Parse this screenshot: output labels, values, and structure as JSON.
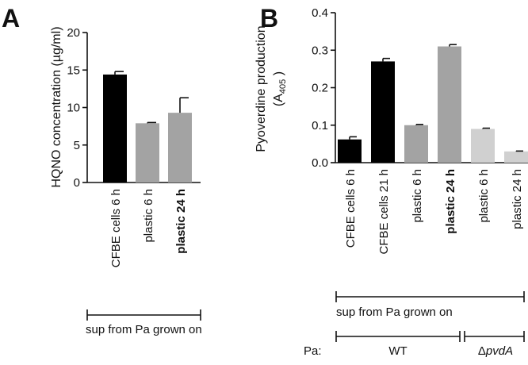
{
  "figure": {
    "panel_a_letter": "A",
    "panel_b_letter": "B"
  },
  "chart_data": [
    {
      "type": "bar",
      "panel": "A",
      "ylabel": "HQNO concentration (µg/ml)",
      "xlabel": "",
      "ylim": [
        0,
        20
      ],
      "yticks": [
        0,
        5,
        10,
        15,
        20
      ],
      "categories": [
        "CFBE cells 6 h",
        "plastic 6 h",
        "plastic 24 h"
      ],
      "bold_categories": [
        "plastic 24 h"
      ],
      "values": [
        14.4,
        7.9,
        9.3
      ],
      "errors": [
        0.4,
        0.1,
        2.0
      ],
      "colors": [
        "#000000",
        "#a3a3a3",
        "#a3a3a3"
      ],
      "bracket_label": "sup from Pa grown on",
      "grid": false,
      "legend": "none"
    },
    {
      "type": "bar",
      "panel": "B",
      "ylabel_line1": "Pyoverdine production",
      "ylabel_line2_prefix": "(A",
      "ylabel_line2_sub": "405",
      "ylabel_line2_suffix": " )",
      "xlabel": "",
      "ylim": [
        0,
        0.4
      ],
      "yticks": [
        "0.0",
        "0.1",
        "0.2",
        "0.3",
        "0.4"
      ],
      "categories": [
        "CFBE cells 6 h",
        "CFBE cells 21 h",
        "plastic 6 h",
        "plastic 24 h",
        "plastic 6 h",
        "plastic 24 h"
      ],
      "bold_categories_index": [
        3
      ],
      "values": [
        0.062,
        0.27,
        0.1,
        0.31,
        0.09,
        0.03
      ],
      "errors": [
        0.007,
        0.008,
        0.002,
        0.005,
        0.002,
        0.001
      ],
      "colors": [
        "#000000",
        "#000000",
        "#a3a3a3",
        "#a3a3a3",
        "#d0d0d0",
        "#d0d0d0"
      ],
      "bracket_label": "sup from Pa grown on",
      "strain_prefix": "Pa:",
      "strain_groups": [
        {
          "label": "WT",
          "span": [
            0,
            3
          ]
        },
        {
          "label_delta": "Δ",
          "label_italic": "pvdA",
          "span": [
            4,
            5
          ]
        }
      ],
      "grid": false,
      "legend": "none"
    }
  ]
}
